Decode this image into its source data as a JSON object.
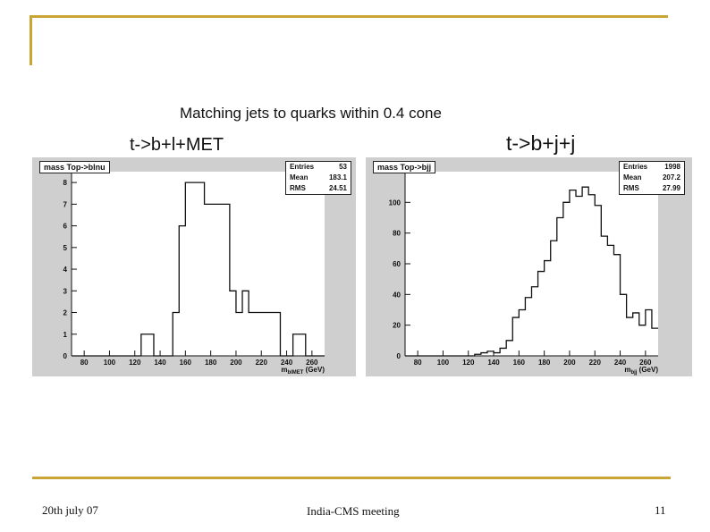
{
  "slide": {
    "heading": "Matching jets to quarks within 0.4 cone",
    "label_left": "t->b+l+MET",
    "label_right": "t->b+j+j",
    "footer_date": "20th july 07",
    "footer_meeting": "India-CMS meeting",
    "footer_page": "11",
    "accent_color": "#c8a535"
  },
  "chart_data": [
    {
      "type": "histogram",
      "title": "mass Top->blnu",
      "stats": [
        {
          "label": "Entries",
          "value": "53"
        },
        {
          "label": "Mean",
          "value": "183.1"
        },
        {
          "label": "RMS",
          "value": "24.51"
        }
      ],
      "xlabel": "m_blMET (GeV)",
      "xlabel_main": "m",
      "xlabel_sub": "blMET",
      "xlabel_unit": " (GeV)",
      "xlim": [
        70,
        270
      ],
      "ylim": [
        0,
        8.5
      ],
      "xticks": [
        80,
        100,
        120,
        140,
        160,
        180,
        200,
        220,
        240,
        260
      ],
      "yticks": [
        0,
        1,
        2,
        3,
        4,
        5,
        6,
        7,
        8
      ],
      "bin_width": 10,
      "bins": [
        {
          "x": 70,
          "value": 0
        },
        {
          "x": 80,
          "value": 0
        },
        {
          "x": 90,
          "value": 0
        },
        {
          "x": 100,
          "value": 0
        },
        {
          "x": 110,
          "value": 0
        },
        {
          "x": 120,
          "value": 0
        },
        {
          "x": 125,
          "value": 1
        },
        {
          "x": 135,
          "value": 0
        },
        {
          "x": 145,
          "value": 0
        },
        {
          "x": 150,
          "value": 2
        },
        {
          "x": 155,
          "value": 6
        },
        {
          "x": 160,
          "value": 8
        },
        {
          "x": 170,
          "value": 8
        },
        {
          "x": 175,
          "value": 7
        },
        {
          "x": 185,
          "value": 7
        },
        {
          "x": 195,
          "value": 3
        },
        {
          "x": 200,
          "value": 2
        },
        {
          "x": 205,
          "value": 3
        },
        {
          "x": 210,
          "value": 2
        },
        {
          "x": 220,
          "value": 2
        },
        {
          "x": 225,
          "value": 2
        },
        {
          "x": 235,
          "value": 0
        },
        {
          "x": 245,
          "value": 1
        },
        {
          "x": 255,
          "value": 0
        }
      ],
      "bin_edges_end": 270
    },
    {
      "type": "histogram",
      "title": "mass Top->bjj",
      "stats": [
        {
          "label": "Entries",
          "value": "1998"
        },
        {
          "label": "Mean",
          "value": "207.2"
        },
        {
          "label": "RMS",
          "value": "27.99"
        }
      ],
      "xlabel": "m_bjj (GeV)",
      "xlabel_main": "m",
      "xlabel_sub": "bjj",
      "xlabel_unit": " (GeV)",
      "xlim": [
        70,
        270
      ],
      "ylim": [
        0,
        120
      ],
      "xticks": [
        80,
        100,
        120,
        140,
        160,
        180,
        200,
        220,
        240,
        260
      ],
      "yticks": [
        0,
        20,
        40,
        60,
        80,
        100
      ],
      "bin_width": 5,
      "bins": [
        {
          "x": 70,
          "value": 0
        },
        {
          "x": 125,
          "value": 1
        },
        {
          "x": 130,
          "value": 2
        },
        {
          "x": 135,
          "value": 3
        },
        {
          "x": 140,
          "value": 2
        },
        {
          "x": 145,
          "value": 5
        },
        {
          "x": 150,
          "value": 10
        },
        {
          "x": 155,
          "value": 25
        },
        {
          "x": 160,
          "value": 30
        },
        {
          "x": 165,
          "value": 38
        },
        {
          "x": 170,
          "value": 45
        },
        {
          "x": 175,
          "value": 55
        },
        {
          "x": 180,
          "value": 62
        },
        {
          "x": 185,
          "value": 75
        },
        {
          "x": 190,
          "value": 90
        },
        {
          "x": 195,
          "value": 100
        },
        {
          "x": 200,
          "value": 108
        },
        {
          "x": 205,
          "value": 104
        },
        {
          "x": 210,
          "value": 110
        },
        {
          "x": 215,
          "value": 105
        },
        {
          "x": 220,
          "value": 98
        },
        {
          "x": 225,
          "value": 78
        },
        {
          "x": 230,
          "value": 72
        },
        {
          "x": 235,
          "value": 66
        },
        {
          "x": 240,
          "value": 40
        },
        {
          "x": 245,
          "value": 25
        },
        {
          "x": 250,
          "value": 28
        },
        {
          "x": 255,
          "value": 20
        },
        {
          "x": 260,
          "value": 30
        },
        {
          "x": 265,
          "value": 18
        }
      ],
      "bin_edges_end": 270
    }
  ]
}
